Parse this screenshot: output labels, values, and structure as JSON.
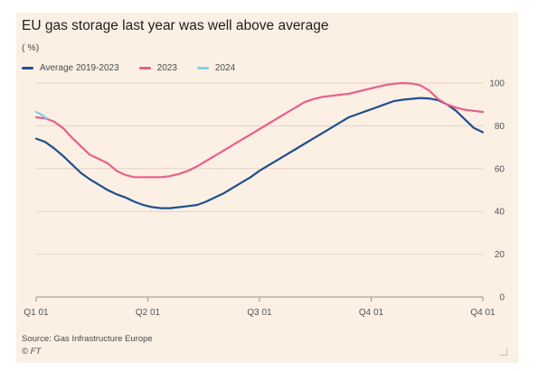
{
  "chart_data": {
    "type": "line",
    "title": "EU gas storage last year was well above average",
    "unit": "( %)",
    "x_ticks": [
      "Q1 01",
      "Q2 01",
      "Q3 01",
      "Q4 01",
      "Q4 01"
    ],
    "ylim": [
      0,
      100
    ],
    "y_ticks": [
      0,
      20,
      40,
      60,
      80,
      100
    ],
    "grid": true,
    "legend": "top-left",
    "series": [
      {
        "name": "Average 2019-2023",
        "color": "#1f4f8f",
        "values": [
          {
            "x": 0,
            "y": 74
          },
          {
            "x": 0.02,
            "y": 72.5
          },
          {
            "x": 0.04,
            "y": 69.5
          },
          {
            "x": 0.06,
            "y": 66
          },
          {
            "x": 0.08,
            "y": 62
          },
          {
            "x": 0.1,
            "y": 58
          },
          {
            "x": 0.12,
            "y": 55
          },
          {
            "x": 0.14,
            "y": 52.5
          },
          {
            "x": 0.16,
            "y": 50
          },
          {
            "x": 0.18,
            "y": 48
          },
          {
            "x": 0.2,
            "y": 46.5
          },
          {
            "x": 0.22,
            "y": 44.5
          },
          {
            "x": 0.24,
            "y": 43
          },
          {
            "x": 0.26,
            "y": 42
          },
          {
            "x": 0.28,
            "y": 41.5
          },
          {
            "x": 0.3,
            "y": 41.5
          },
          {
            "x": 0.32,
            "y": 42
          },
          {
            "x": 0.34,
            "y": 42.5
          },
          {
            "x": 0.36,
            "y": 43
          },
          {
            "x": 0.38,
            "y": 44.5
          },
          {
            "x": 0.4,
            "y": 46.5
          },
          {
            "x": 0.42,
            "y": 48.5
          },
          {
            "x": 0.44,
            "y": 51
          },
          {
            "x": 0.46,
            "y": 53.5
          },
          {
            "x": 0.48,
            "y": 56
          },
          {
            "x": 0.5,
            "y": 59
          },
          {
            "x": 0.52,
            "y": 61.5
          },
          {
            "x": 0.54,
            "y": 64
          },
          {
            "x": 0.56,
            "y": 66.5
          },
          {
            "x": 0.58,
            "y": 69
          },
          {
            "x": 0.6,
            "y": 71.5
          },
          {
            "x": 0.62,
            "y": 74
          },
          {
            "x": 0.64,
            "y": 76.5
          },
          {
            "x": 0.66,
            "y": 79
          },
          {
            "x": 0.68,
            "y": 81.5
          },
          {
            "x": 0.7,
            "y": 84
          },
          {
            "x": 0.72,
            "y": 85.5
          },
          {
            "x": 0.74,
            "y": 87
          },
          {
            "x": 0.76,
            "y": 88.5
          },
          {
            "x": 0.78,
            "y": 90
          },
          {
            "x": 0.8,
            "y": 91.5
          },
          {
            "x": 0.82,
            "y": 92.2
          },
          {
            "x": 0.84,
            "y": 92.6
          },
          {
            "x": 0.86,
            "y": 93
          },
          {
            "x": 0.88,
            "y": 92.8
          },
          {
            "x": 0.9,
            "y": 92
          },
          {
            "x": 0.92,
            "y": 90
          },
          {
            "x": 0.94,
            "y": 87
          },
          {
            "x": 0.96,
            "y": 83
          },
          {
            "x": 0.98,
            "y": 79
          },
          {
            "x": 1.0,
            "y": 77
          }
        ]
      },
      {
        "name": "2023",
        "color": "#e8608a",
        "values": [
          {
            "x": 0,
            "y": 84
          },
          {
            "x": 0.02,
            "y": 83.5
          },
          {
            "x": 0.04,
            "y": 82
          },
          {
            "x": 0.06,
            "y": 79
          },
          {
            "x": 0.08,
            "y": 74.5
          },
          {
            "x": 0.1,
            "y": 70.5
          },
          {
            "x": 0.12,
            "y": 66.5
          },
          {
            "x": 0.14,
            "y": 64.5
          },
          {
            "x": 0.16,
            "y": 62.5
          },
          {
            "x": 0.18,
            "y": 59
          },
          {
            "x": 0.2,
            "y": 57
          },
          {
            "x": 0.22,
            "y": 56
          },
          {
            "x": 0.24,
            "y": 56
          },
          {
            "x": 0.26,
            "y": 56
          },
          {
            "x": 0.28,
            "y": 56
          },
          {
            "x": 0.3,
            "y": 56.5
          },
          {
            "x": 0.32,
            "y": 57.5
          },
          {
            "x": 0.34,
            "y": 59
          },
          {
            "x": 0.36,
            "y": 61
          },
          {
            "x": 0.38,
            "y": 63.5
          },
          {
            "x": 0.4,
            "y": 66
          },
          {
            "x": 0.42,
            "y": 68.5
          },
          {
            "x": 0.44,
            "y": 71
          },
          {
            "x": 0.46,
            "y": 73.5
          },
          {
            "x": 0.48,
            "y": 76
          },
          {
            "x": 0.5,
            "y": 78.5
          },
          {
            "x": 0.52,
            "y": 81
          },
          {
            "x": 0.54,
            "y": 83.5
          },
          {
            "x": 0.56,
            "y": 86
          },
          {
            "x": 0.58,
            "y": 88.5
          },
          {
            "x": 0.6,
            "y": 91
          },
          {
            "x": 0.62,
            "y": 92.5
          },
          {
            "x": 0.64,
            "y": 93.5
          },
          {
            "x": 0.66,
            "y": 94
          },
          {
            "x": 0.68,
            "y": 94.5
          },
          {
            "x": 0.7,
            "y": 95
          },
          {
            "x": 0.72,
            "y": 96
          },
          {
            "x": 0.74,
            "y": 97
          },
          {
            "x": 0.76,
            "y": 98
          },
          {
            "x": 0.78,
            "y": 99
          },
          {
            "x": 0.8,
            "y": 99.6
          },
          {
            "x": 0.82,
            "y": 100
          },
          {
            "x": 0.84,
            "y": 99.8
          },
          {
            "x": 0.86,
            "y": 99
          },
          {
            "x": 0.88,
            "y": 96.5
          },
          {
            "x": 0.9,
            "y": 92.5
          },
          {
            "x": 0.92,
            "y": 90
          },
          {
            "x": 0.94,
            "y": 88.5
          },
          {
            "x": 0.96,
            "y": 87.5
          },
          {
            "x": 0.98,
            "y": 87
          },
          {
            "x": 1.0,
            "y": 86.5
          }
        ]
      },
      {
        "name": "2024",
        "color": "#7fd3e8",
        "values": [
          {
            "x": 0,
            "y": 86.5
          },
          {
            "x": 0.01,
            "y": 85.5
          },
          {
            "x": 0.02,
            "y": 84
          },
          {
            "x": 0.025,
            "y": 83.5
          }
        ]
      }
    ]
  },
  "source": "Source: Gas Infrastructure Europe",
  "copyright": "© FT"
}
